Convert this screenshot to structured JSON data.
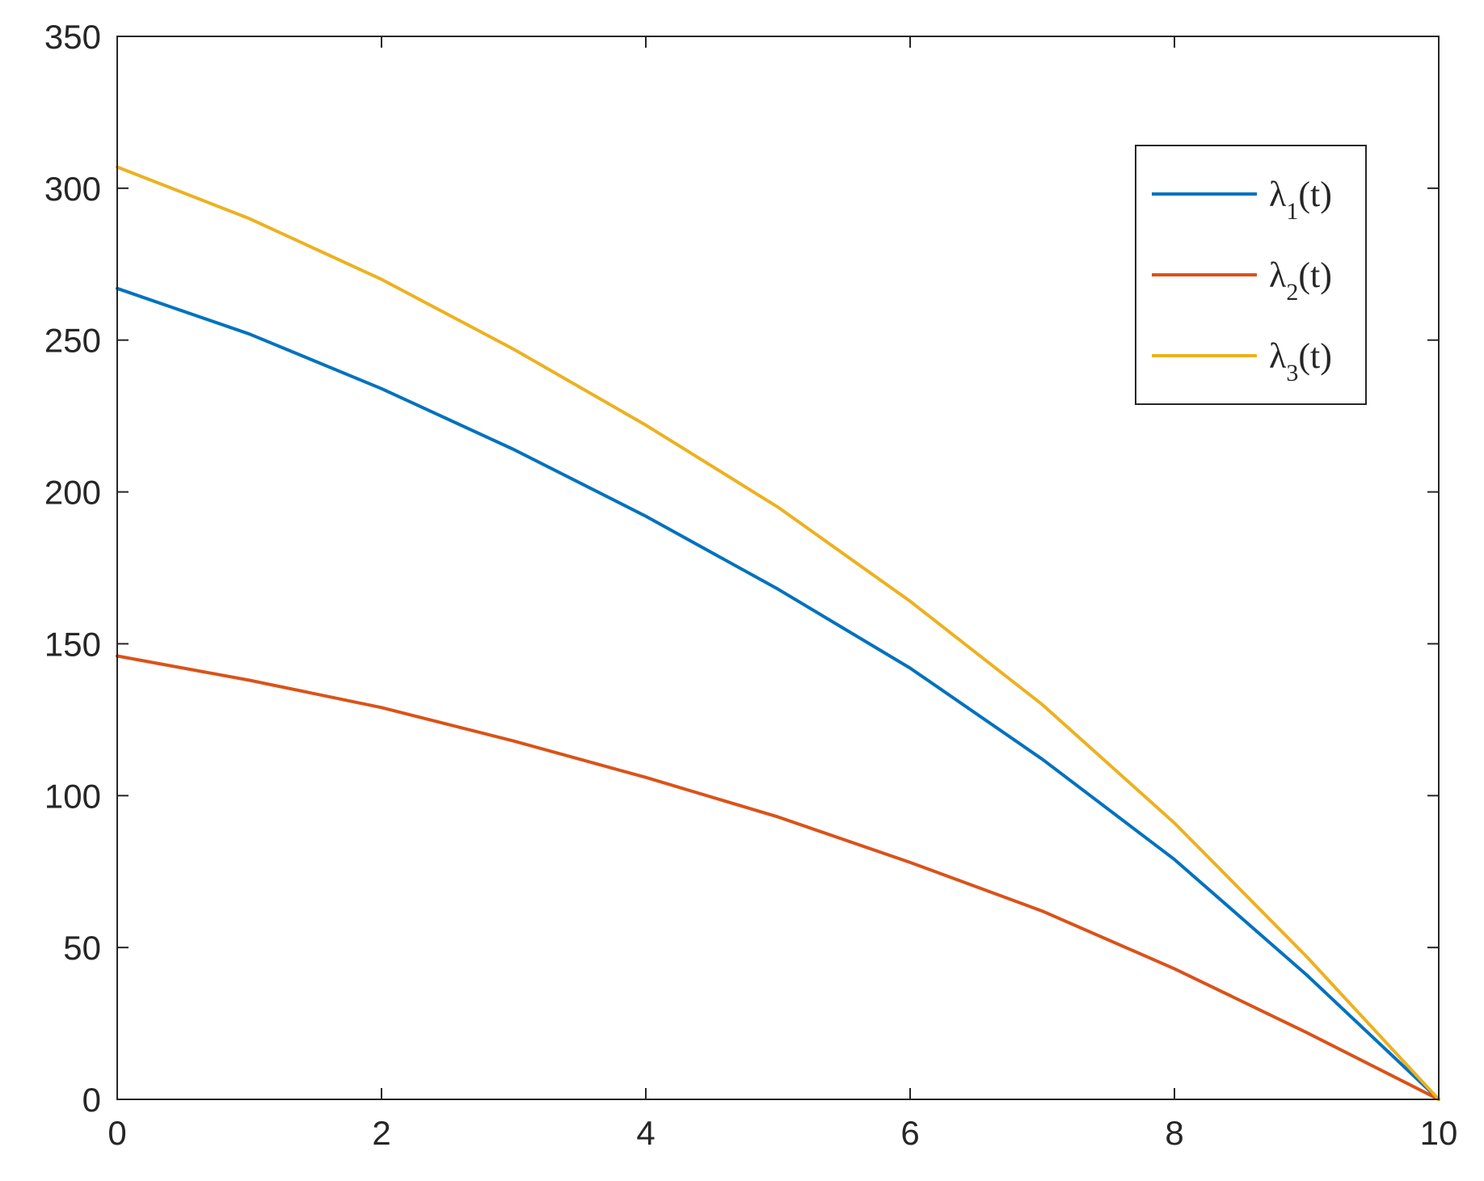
{
  "chart_data": {
    "type": "line",
    "title": "",
    "xlabel": "",
    "ylabel": "",
    "xlim": [
      0,
      10
    ],
    "ylim": [
      0,
      350
    ],
    "xticks": [
      0,
      2,
      4,
      6,
      8,
      10
    ],
    "yticks": [
      0,
      50,
      100,
      150,
      200,
      250,
      300,
      350
    ],
    "xtick_labels": [
      "0",
      "2",
      "4",
      "6",
      "8",
      "10"
    ],
    "ytick_labels": [
      "0",
      "50",
      "100",
      "150",
      "200",
      "250",
      "300",
      "350"
    ],
    "grid": false,
    "legend_position": "top-right",
    "x": [
      0,
      1,
      2,
      3,
      4,
      5,
      6,
      7,
      8,
      9,
      10
    ],
    "series": [
      {
        "name": "λ1(t)",
        "label_main": "λ",
        "label_sub": "1",
        "label_rest": "(t)",
        "color": "#0072BD",
        "values": [
          267,
          252,
          234,
          214,
          192,
          168,
          142,
          112,
          79,
          41,
          0
        ]
      },
      {
        "name": "λ2(t)",
        "label_main": "λ",
        "label_sub": "2",
        "label_rest": "(t)",
        "color": "#D95319",
        "values": [
          146,
          138,
          129,
          118,
          106,
          93,
          78,
          62,
          43,
          22,
          0
        ]
      },
      {
        "name": "λ3(t)",
        "label_main": "λ",
        "label_sub": "3",
        "label_rest": "(t)",
        "color": "#EDB120",
        "values": [
          307,
          290,
          270,
          247,
          222,
          195,
          164,
          130,
          91,
          47,
          0
        ]
      }
    ]
  }
}
